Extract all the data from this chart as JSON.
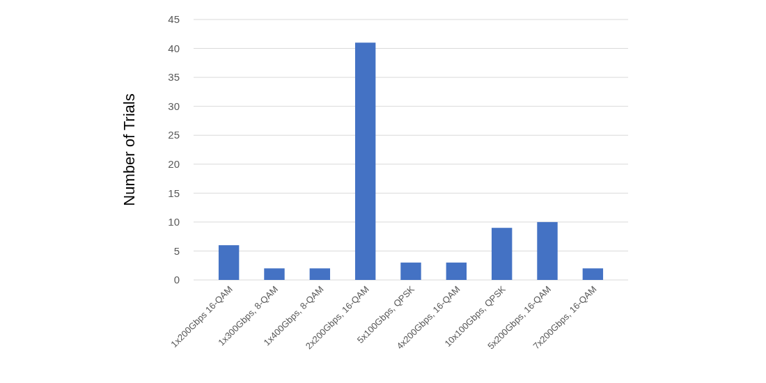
{
  "chart_data": {
    "type": "bar",
    "ylabel": "Number of Trials",
    "categories": [
      "1x200Gbps 16-QAM",
      "1x300Gbps, 8-QAM",
      "1x400Gbps, 8-QAM",
      "2x200Gbps, 16-QAM",
      "5x100Gbps, QPSK",
      "4x200Gbps, 16-QAM",
      "10x100Gbps, QPSK",
      "5x200Gbps, 16-QAM",
      "7x200Gbps, 16-QAM"
    ],
    "values": [
      6,
      2,
      2,
      41,
      3,
      3,
      9,
      10,
      2
    ],
    "color": "#4472c4",
    "ylim": [
      0,
      45
    ],
    "yticks": [
      0,
      5,
      10,
      15,
      20,
      25,
      30,
      35,
      40,
      45
    ],
    "grid": "y"
  }
}
